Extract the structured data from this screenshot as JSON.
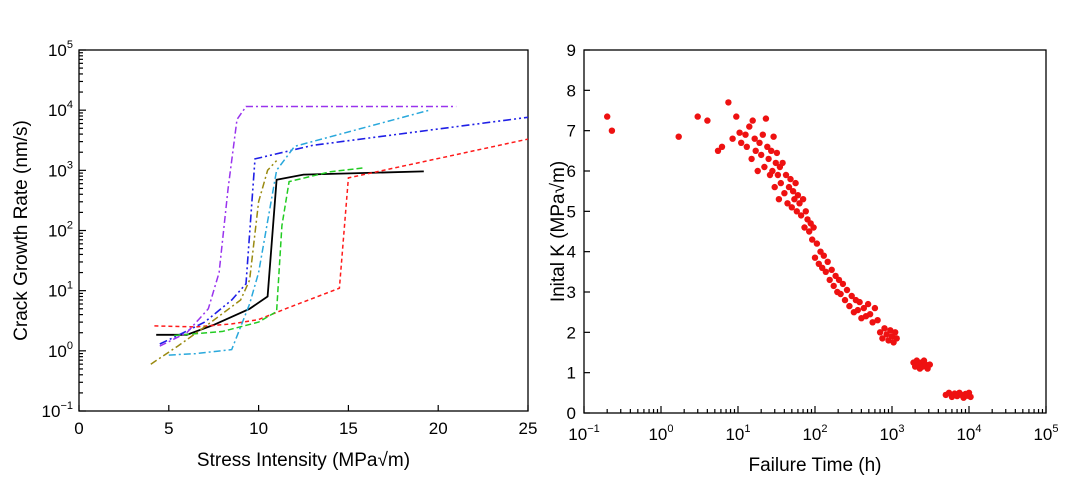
{
  "chart_data": [
    {
      "type": "line",
      "title": "",
      "xlabel": "Stress Intensity (MPa√m)",
      "ylabel": "Crack Growth Rate (nm/s)",
      "xlim": [
        0,
        25
      ],
      "ylim_log10": [
        -1,
        5
      ],
      "yscale": "log",
      "grid": false,
      "x_ticks": [
        "0",
        "5",
        "10",
        "15",
        "20",
        "25"
      ],
      "y_ticks": [
        {
          "base": "10",
          "exp": "−1"
        },
        {
          "base": "10",
          "exp": "0"
        },
        {
          "base": "10",
          "exp": "1"
        },
        {
          "base": "10",
          "exp": "2"
        },
        {
          "base": "10",
          "exp": "3"
        },
        {
          "base": "10",
          "exp": "4"
        },
        {
          "base": "10",
          "exp": "5"
        }
      ],
      "series": [
        {
          "color": "#000000",
          "dash": "",
          "width": 1.8,
          "points": [
            [
              4.3,
              1.85
            ],
            [
              6.0,
              1.85
            ],
            [
              7.5,
              2.7
            ],
            [
              9.5,
              5
            ],
            [
              10.5,
              8
            ],
            [
              11,
              700
            ],
            [
              12.5,
              850
            ],
            [
              19.2,
              960
            ]
          ]
        },
        {
          "color": "#ff1a1a",
          "dash": "4 3",
          "width": 1.5,
          "points": [
            [
              4.2,
              2.6
            ],
            [
              6.5,
              2.5
            ],
            [
              8.5,
              2.8
            ],
            [
              10,
              3.3
            ],
            [
              11.5,
              5
            ],
            [
              14.5,
              11
            ],
            [
              15,
              750
            ],
            [
              25,
              3300
            ]
          ]
        },
        {
          "color": "#1f1fe6",
          "dash": "8 3 2 3 2 3",
          "width": 1.6,
          "points": [
            [
              4.5,
              1.3
            ],
            [
              5.5,
              1.8
            ],
            [
              7,
              3
            ],
            [
              8.5,
              7
            ],
            [
              9.3,
              13
            ],
            [
              9.8,
              1550
            ],
            [
              13,
              2600
            ],
            [
              25,
              7600
            ]
          ]
        },
        {
          "color": "#22cc22",
          "dash": "6 3",
          "width": 1.5,
          "points": [
            [
              5.3,
              1.8
            ],
            [
              8,
              2.1
            ],
            [
              10,
              3
            ],
            [
              11,
              4.5
            ],
            [
              11.3,
              120
            ],
            [
              11.7,
              650
            ],
            [
              14,
              950
            ],
            [
              15.9,
              1100
            ]
          ]
        },
        {
          "color": "#9a8a10",
          "dash": "7 3 2 3",
          "width": 1.5,
          "points": [
            [
              4.0,
              0.6
            ],
            [
              5.5,
              1.2
            ],
            [
              7,
              2.5
            ],
            [
              9,
              7
            ],
            [
              9.5,
              15
            ],
            [
              10,
              300
            ],
            [
              10.5,
              1000
            ],
            [
              11,
              1450
            ]
          ]
        },
        {
          "color": "#29a8dc",
          "dash": "7 3 2 3",
          "width": 1.5,
          "points": [
            [
              5,
              0.85
            ],
            [
              6.5,
              0.9
            ],
            [
              8.5,
              1.05
            ],
            [
              9.5,
              6
            ],
            [
              10,
              20
            ],
            [
              11,
              1000
            ],
            [
              12,
              2500
            ],
            [
              19.5,
              10000
            ]
          ]
        },
        {
          "color": "#9933ee",
          "dash": "7 3 2 3",
          "width": 1.5,
          "points": [
            [
              4.5,
              1.2
            ],
            [
              6,
              2
            ],
            [
              7.2,
              5
            ],
            [
              7.8,
              20
            ],
            [
              8.3,
              500
            ],
            [
              8.8,
              7000
            ],
            [
              9.3,
              11500
            ],
            [
              21,
              11500
            ]
          ]
        }
      ]
    },
    {
      "type": "scatter",
      "title": "",
      "xlabel": "Failure Time (h)",
      "ylabel": "Inital K (MPa√m)",
      "xscale": "log",
      "xlim_log10": [
        -1,
        5
      ],
      "ylim": [
        0,
        9
      ],
      "grid": false,
      "x_ticks": [
        {
          "base": "10",
          "exp": "−1"
        },
        {
          "base": "10",
          "exp": "0"
        },
        {
          "base": "10",
          "exp": "1"
        },
        {
          "base": "10",
          "exp": "2"
        },
        {
          "base": "10",
          "exp": "3"
        },
        {
          "base": "10",
          "exp": "4"
        },
        {
          "base": "10",
          "exp": "5"
        }
      ],
      "y_ticks": [
        "0",
        "1",
        "2",
        "3",
        "4",
        "5",
        "6",
        "7",
        "8",
        "9"
      ],
      "marker_color": "#ee1111",
      "points": [
        [
          0.2,
          7.35
        ],
        [
          0.23,
          7.0
        ],
        [
          1.7,
          6.85
        ],
        [
          3,
          7.35
        ],
        [
          4,
          7.25
        ],
        [
          5.5,
          6.5
        ],
        [
          6.2,
          6.6
        ],
        [
          7.5,
          7.7
        ],
        [
          8.5,
          6.8
        ],
        [
          9.5,
          7.35
        ],
        [
          10.5,
          6.95
        ],
        [
          11,
          6.7
        ],
        [
          12.5,
          6.9
        ],
        [
          13,
          6.6
        ],
        [
          14,
          7.1
        ],
        [
          15,
          6.3
        ],
        [
          15.5,
          7.25
        ],
        [
          16.5,
          6.8
        ],
        [
          17,
          6.5
        ],
        [
          18,
          6.0
        ],
        [
          19,
          6.7
        ],
        [
          20,
          6.4
        ],
        [
          21,
          6.9
        ],
        [
          22,
          6.1
        ],
        [
          23,
          7.3
        ],
        [
          24,
          6.6
        ],
        [
          25,
          6.3
        ],
        [
          26,
          5.9
        ],
        [
          27,
          6.5
        ],
        [
          28,
          6.0
        ],
        [
          29,
          6.85
        ],
        [
          30,
          5.6
        ],
        [
          31,
          6.2
        ],
        [
          32,
          6.45
        ],
        [
          33,
          5.9
        ],
        [
          34,
          5.3
        ],
        [
          35,
          6.1
        ],
        [
          36,
          5.7
        ],
        [
          38,
          6.2
        ],
        [
          40,
          5.45
        ],
        [
          42,
          5.9
        ],
        [
          44,
          5.2
        ],
        [
          46,
          5.6
        ],
        [
          48,
          5.8
        ],
        [
          50,
          5.1
        ],
        [
          52,
          5.5
        ],
        [
          54,
          5.3
        ],
        [
          56,
          5.7
        ],
        [
          58,
          5.0
        ],
        [
          60,
          5.4
        ],
        [
          63,
          5.2
        ],
        [
          66,
          4.9
        ],
        [
          70,
          5.3
        ],
        [
          73,
          4.6
        ],
        [
          76,
          5.0
        ],
        [
          80,
          4.8
        ],
        [
          84,
          4.5
        ],
        [
          88,
          4.7
        ],
        [
          92,
          4.3
        ],
        [
          96,
          4.6
        ],
        [
          100,
          3.85
        ],
        [
          106,
          4.2
        ],
        [
          112,
          3.7
        ],
        [
          118,
          4.0
        ],
        [
          124,
          3.6
        ],
        [
          130,
          3.9
        ],
        [
          138,
          3.5
        ],
        [
          146,
          3.75
        ],
        [
          155,
          3.3
        ],
        [
          165,
          3.55
        ],
        [
          175,
          3.15
        ],
        [
          185,
          3.4
        ],
        [
          195,
          3.0
        ],
        [
          205,
          3.3
        ],
        [
          215,
          2.95
        ],
        [
          230,
          3.2
        ],
        [
          245,
          2.8
        ],
        [
          260,
          3.05
        ],
        [
          280,
          2.65
        ],
        [
          300,
          2.9
        ],
        [
          320,
          2.5
        ],
        [
          340,
          2.8
        ],
        [
          360,
          2.55
        ],
        [
          380,
          2.75
        ],
        [
          400,
          2.35
        ],
        [
          430,
          2.6
        ],
        [
          460,
          2.4
        ],
        [
          490,
          2.7
        ],
        [
          520,
          2.45
        ],
        [
          560,
          2.25
        ],
        [
          600,
          2.6
        ],
        [
          650,
          2.3
        ],
        [
          700,
          2.0
        ],
        [
          750,
          1.85
        ],
        [
          800,
          2.1
        ],
        [
          850,
          1.95
        ],
        [
          900,
          1.8
        ],
        [
          950,
          2.05
        ],
        [
          1000,
          1.9
        ],
        [
          1050,
          1.75
        ],
        [
          1100,
          2.0
        ],
        [
          1150,
          1.85
        ],
        [
          1900,
          1.25
        ],
        [
          2000,
          1.15
        ],
        [
          2100,
          1.3
        ],
        [
          2200,
          1.2
        ],
        [
          2300,
          1.1
        ],
        [
          2400,
          1.25
        ],
        [
          2500,
          1.15
        ],
        [
          2600,
          1.3
        ],
        [
          2750,
          1.2
        ],
        [
          2900,
          1.1
        ],
        [
          3100,
          1.2
        ],
        [
          5000,
          0.45
        ],
        [
          5500,
          0.5
        ],
        [
          6000,
          0.4
        ],
        [
          6500,
          0.48
        ],
        [
          7000,
          0.42
        ],
        [
          7500,
          0.5
        ],
        [
          8000,
          0.45
        ],
        [
          8500,
          0.38
        ],
        [
          9000,
          0.47
        ],
        [
          9500,
          0.43
        ],
        [
          10000,
          0.5
        ],
        [
          10500,
          0.4
        ]
      ]
    }
  ]
}
